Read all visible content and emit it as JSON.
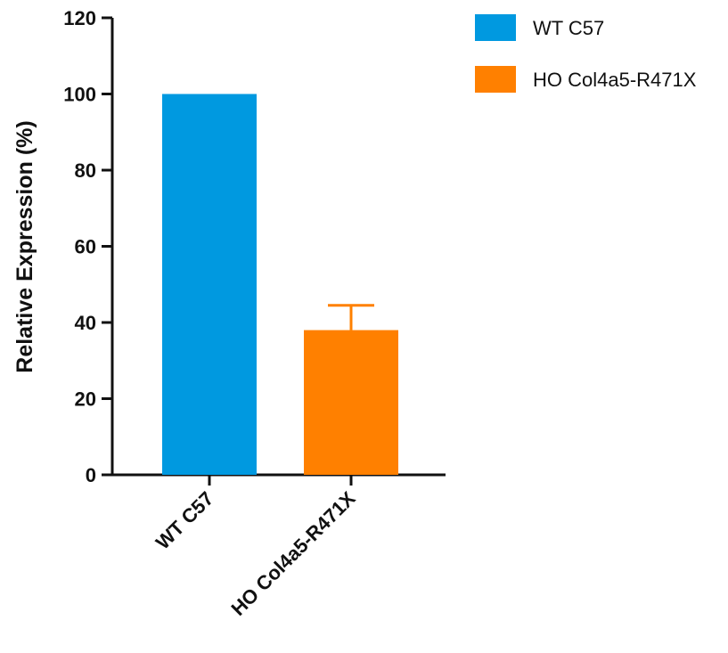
{
  "chart_data": {
    "type": "bar",
    "title": "",
    "xlabel": "",
    "ylabel": "Relative Expression (%)",
    "ylim": [
      0,
      120
    ],
    "yticks": [
      0,
      20,
      40,
      60,
      80,
      100,
      120
    ],
    "grid": false,
    "legend_position": "top-right",
    "categories": [
      "WT C57",
      "HO Col4a5-R471X"
    ],
    "values": [
      100,
      38
    ],
    "error_bars": [
      0,
      6.5
    ],
    "colors": [
      "#0099e0",
      "#ff8000"
    ],
    "legend": [
      {
        "label": "WT C57",
        "color": "#0099e0"
      },
      {
        "label": "HO Col4a5-R471X",
        "color": "#ff8000"
      }
    ]
  }
}
